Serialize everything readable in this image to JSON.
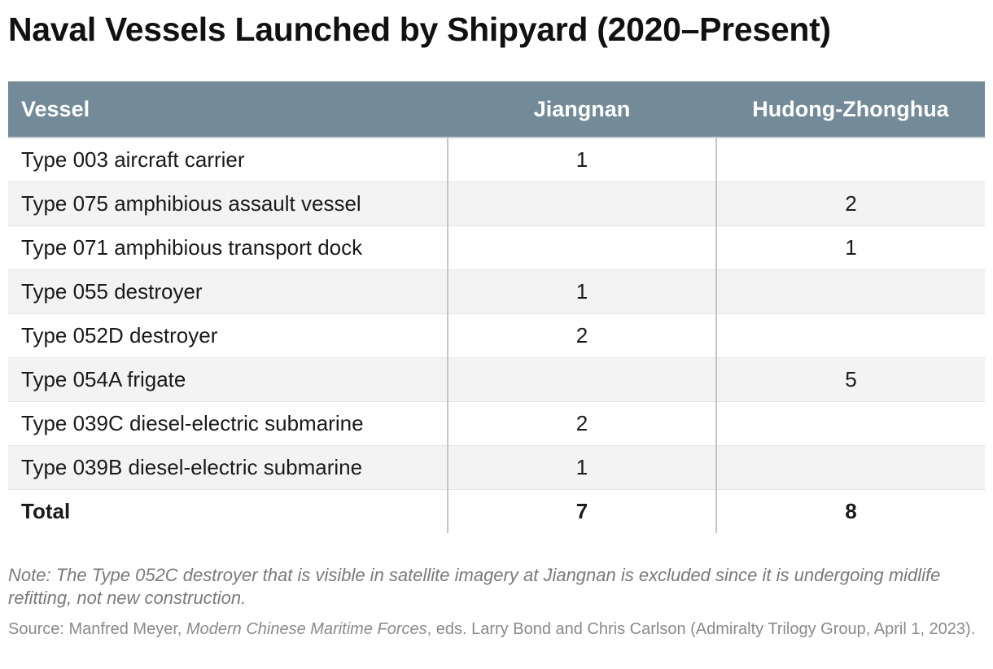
{
  "title": "Naval Vessels Launched by Shipyard (2020–Present)",
  "chart_data": {
    "type": "table",
    "title": "Naval Vessels Launched by Shipyard (2020–Present)",
    "columns": [
      "Vessel",
      "Jiangnan",
      "Hudong-Zhonghua"
    ],
    "rows": [
      [
        "Type 003 aircraft carrier",
        "1",
        ""
      ],
      [
        "Type 075 amphibious assault vessel",
        "",
        "2"
      ],
      [
        "Type 071 amphibious transport dock",
        "",
        "1"
      ],
      [
        "Type 055 destroyer",
        "1",
        ""
      ],
      [
        "Type 052D destroyer",
        "2",
        ""
      ],
      [
        "Type 054A frigate",
        "",
        "5"
      ],
      [
        "Type 039C diesel-electric submarine",
        "2",
        ""
      ],
      [
        "Type 039B diesel-electric submarine",
        "1",
        ""
      ]
    ],
    "total": [
      "Total",
      "7",
      "8"
    ]
  },
  "note": "Note: The Type 052C destroyer that is visible in satellite imagery at Jiangnan is excluded since it is undergoing midlife refitting, not new construction.",
  "source": {
    "prefix": "Source: Manfred Meyer, ",
    "book": "Modern Chinese Maritime Forces",
    "suffix": ", eds. Larry Bond and Chris Carlson (Admiralty Trilogy Group, April 1, 2023)."
  },
  "colors": {
    "header_bg": "#738a98",
    "header_text": "#ffffff",
    "row_alt_bg": "#f3f3f3",
    "note_text": "#7a7a7a"
  }
}
